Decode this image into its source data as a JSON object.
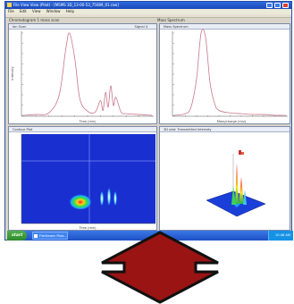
{
  "window": {
    "title": "File View View (Pilot) - [MSMS 3D_13-00-53_75089_01.raw]",
    "menu": [
      "File",
      "Edit",
      "View",
      "Window",
      "Help"
    ]
  },
  "labels": {
    "left_top": "Chromatogram 1 mass scan",
    "right_top": "Mass Spectrum"
  },
  "panels": {
    "chromatogram": {
      "title": "Ion Scan",
      "subtitle": "Signal  4",
      "xlabel": "Time (min)",
      "ylabel": "Intensity"
    },
    "spectrum": {
      "title": "Mass Spectrum",
      "xlabel": "Mass/charge (m/z)"
    },
    "heatmap": {
      "title": "Contour Plot",
      "xlabel": "Time (min)"
    },
    "surface3d": {
      "title": "3D plot: Transmitted Intensity"
    }
  },
  "taskbar": {
    "start_label": "start",
    "task_label": "FileViewer Pilot...",
    "clock": "10:46 AM"
  },
  "colors": {
    "titlebar": "#1f55c8",
    "curve": "#c8788c",
    "heatmap_bg": "#1a2fd0",
    "arrow_fill": "#9a1414",
    "arrow_stroke": "#111111"
  },
  "icons": {
    "arrow": "double-headed-vertical-arrow"
  },
  "chart_data": [
    {
      "type": "line",
      "title": "Ion Scan",
      "xlabel": "Time (min)",
      "ylabel": "Intensity",
      "series": [
        {
          "x": [
            0,
            10,
            20,
            28,
            33,
            36,
            40,
            44,
            50,
            56,
            60,
            62,
            64,
            66,
            68,
            70,
            72,
            76,
            80,
            90,
            100
          ],
          "y": [
            0,
            1,
            3,
            25,
            80,
            100,
            70,
            20,
            5,
            4,
            18,
            6,
            28,
            10,
            36,
            12,
            22,
            4,
            2,
            1,
            0
          ]
        }
      ]
    },
    {
      "type": "line",
      "title": "Mass Spectrum",
      "xlabel": "Mass/charge (m/z)",
      "series": [
        {
          "x": [
            0,
            10,
            15,
            20,
            24,
            28,
            32,
            36,
            40,
            50,
            60,
            70,
            80,
            90,
            100
          ],
          "y": [
            0,
            2,
            10,
            45,
            100,
            95,
            40,
            15,
            6,
            3,
            2,
            1,
            1,
            0,
            0
          ]
        }
      ]
    },
    {
      "type": "heatmap",
      "title": "Contour Plot",
      "xlabel": "Time (min)"
    }
  ]
}
